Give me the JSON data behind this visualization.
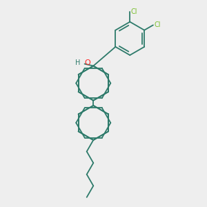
{
  "background_color": "#eeeeee",
  "bond_color": "#2d7a6a",
  "cl_color": "#7abf2e",
  "o_color": "#ff2020",
  "h_color": "#2d7a6a",
  "line_width": 1.3,
  "fig_width": 3.0,
  "fig_height": 3.0,
  "dpi": 100,
  "xlim": [
    0,
    10
  ],
  "ylim": [
    0,
    10
  ]
}
